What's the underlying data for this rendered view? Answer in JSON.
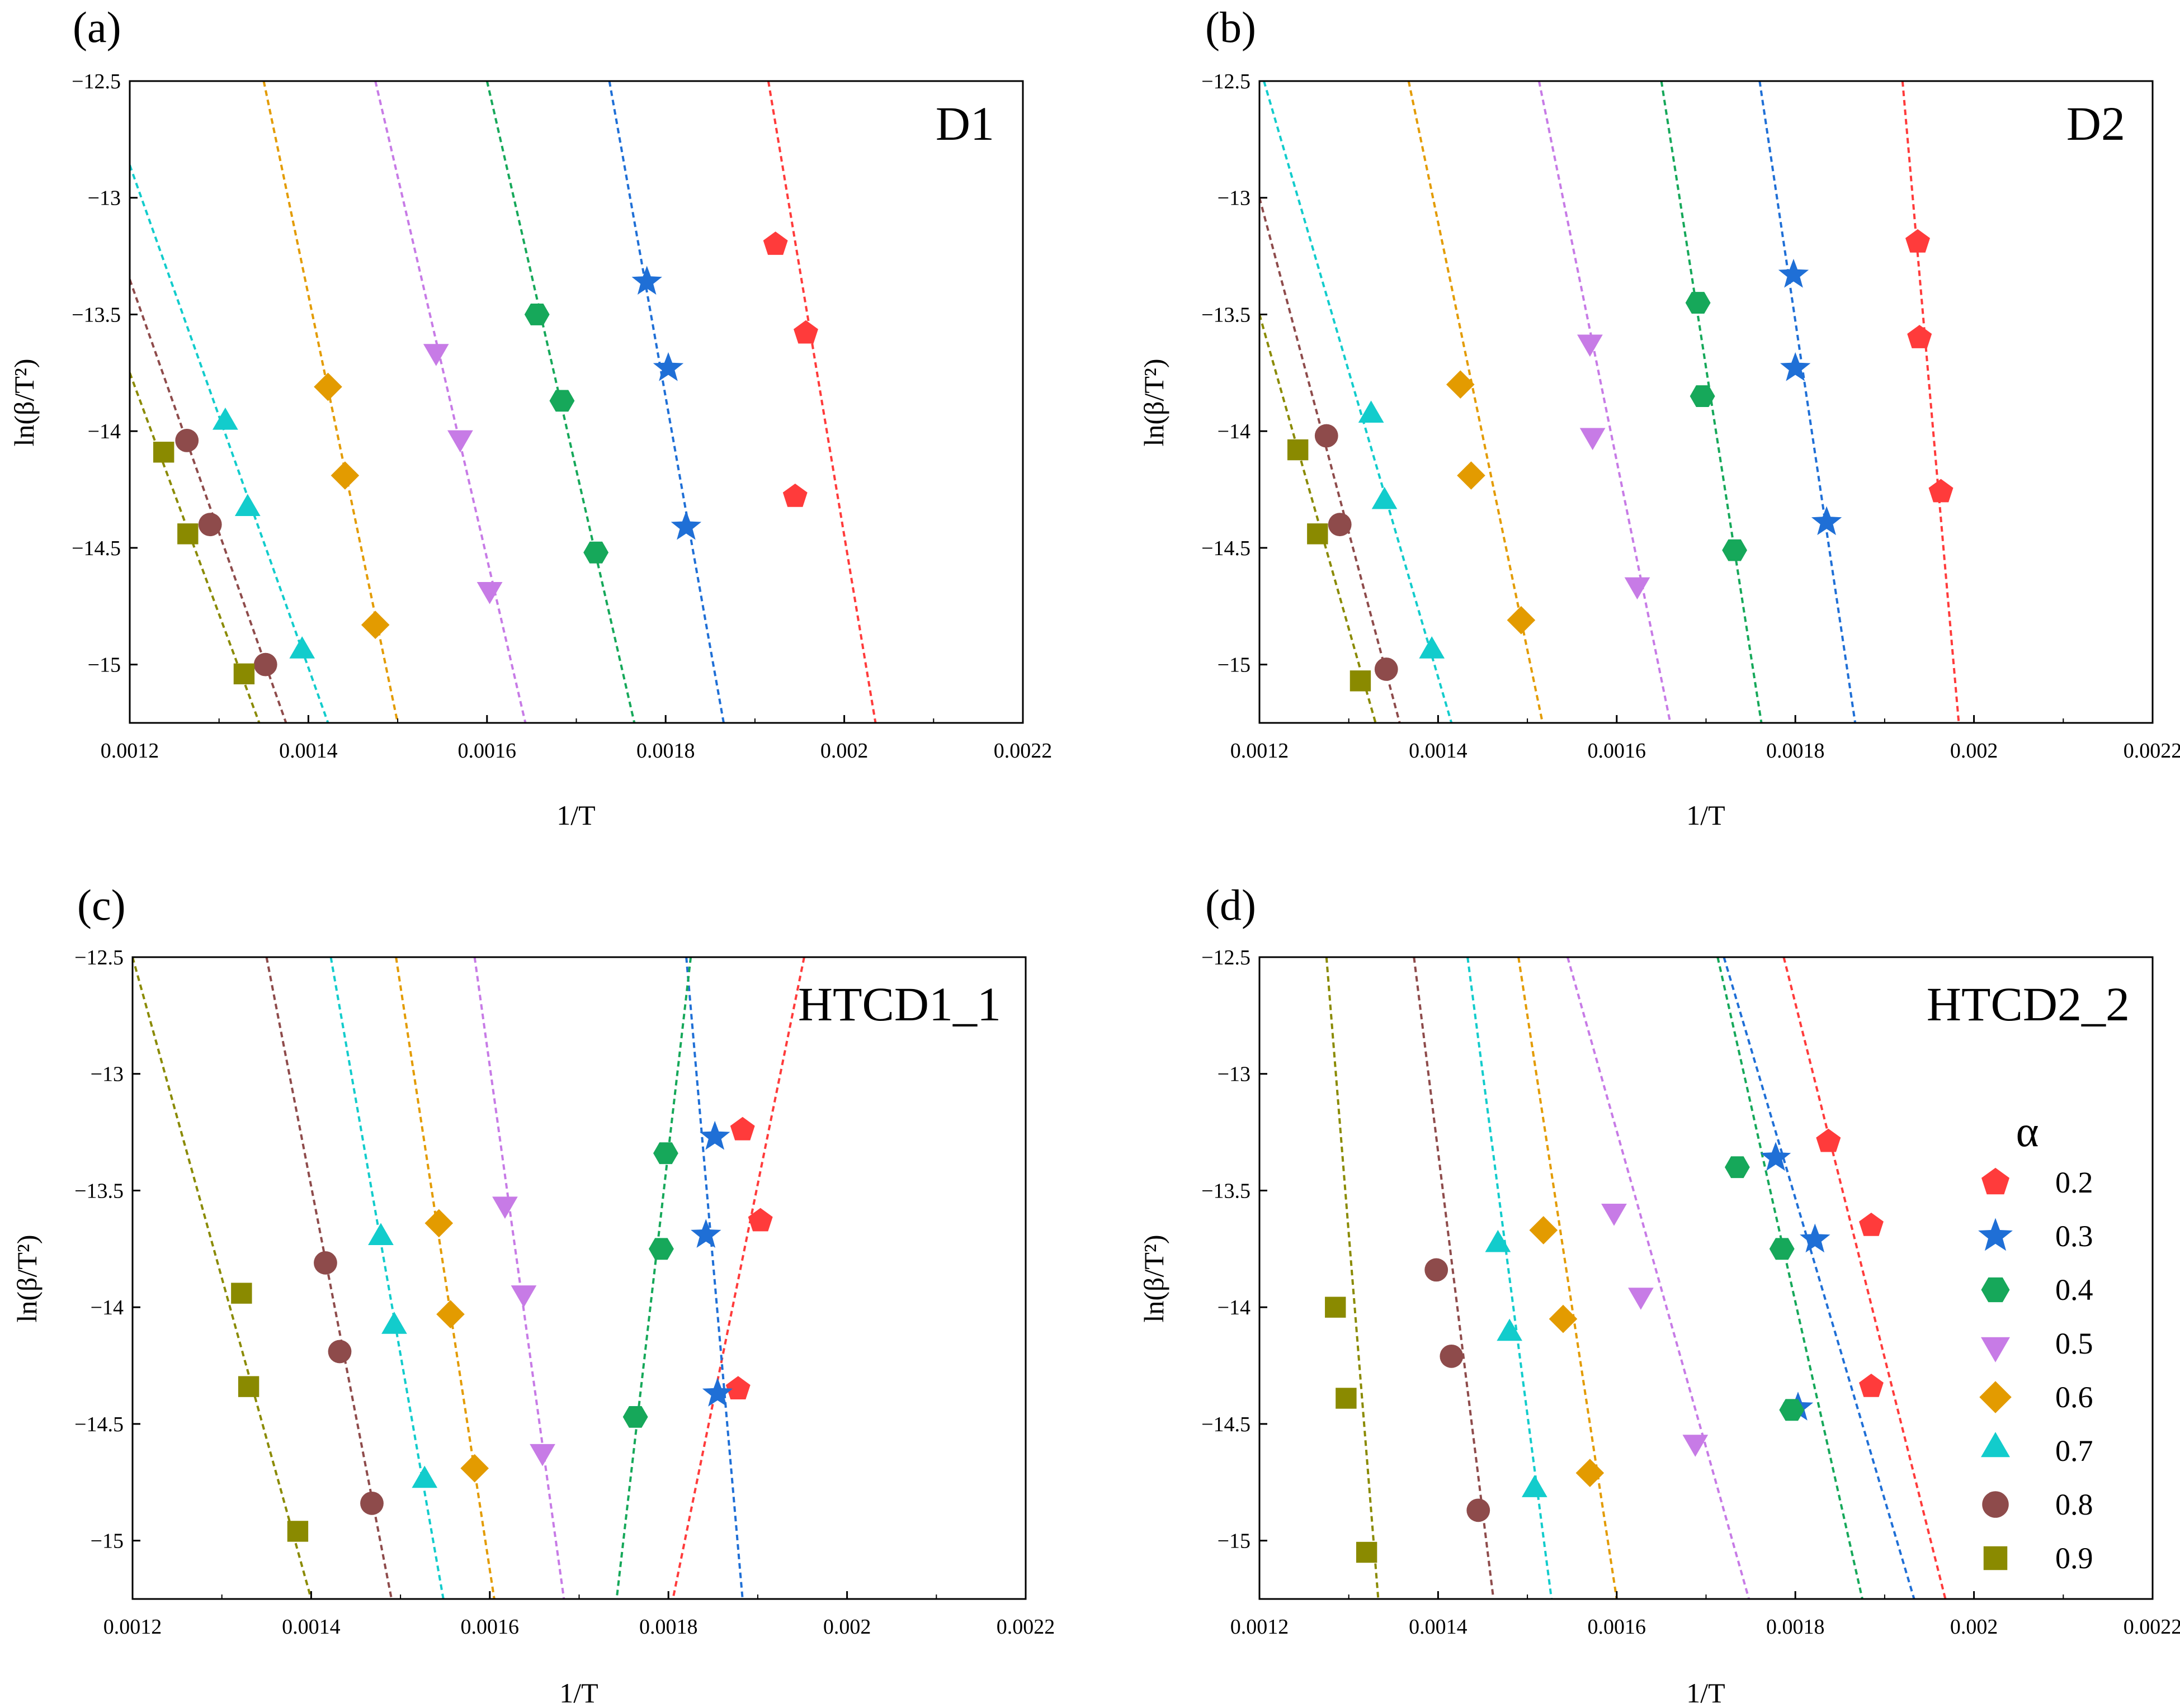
{
  "chart_data": [
    {
      "panel_label": "(a)",
      "type": "scatter",
      "inset_label": "D1",
      "xlabel": "1/T",
      "ylabel": "ln(β/T²)",
      "xlim": [
        0.0012,
        0.0022
      ],
      "ylim": [
        -15.25,
        -12.5
      ],
      "xticks": [
        "0.0012",
        "0.0014",
        "0.0016",
        "0.0018",
        "0.002",
        "0.0022"
      ],
      "yticks": [
        "-12.5",
        "-13",
        "-13.5",
        "-14",
        "-14.5",
        "-15"
      ],
      "series": [
        {
          "name": "0.2",
          "points": [
            [
              0.001923,
              -13.2
            ],
            [
              0.001957,
              -13.58
            ],
            [
              0.001945,
              -14.28
            ]
          ],
          "line": [
            [
              0.001915,
              -12.5
            ],
            [
              0.002035,
              -15.25
            ]
          ]
        },
        {
          "name": "0.3",
          "points": [
            [
              0.001779,
              -13.36
            ],
            [
              0.001803,
              -13.73
            ],
            [
              0.001823,
              -14.41
            ]
          ],
          "line": [
            [
              0.001737,
              -12.5
            ],
            [
              0.001865,
              -15.25
            ]
          ]
        },
        {
          "name": "0.4",
          "points": [
            [
              0.001656,
              -13.5
            ],
            [
              0.001684,
              -13.87
            ],
            [
              0.001722,
              -14.52
            ]
          ],
          "line": [
            [
              0.0016,
              -12.5
            ],
            [
              0.001765,
              -15.25
            ]
          ]
        },
        {
          "name": "0.5",
          "points": [
            [
              0.001543,
              -13.65
            ],
            [
              0.00157,
              -14.02
            ],
            [
              0.001603,
              -14.67
            ]
          ],
          "line": [
            [
              0.001475,
              -12.5
            ],
            [
              0.001643,
              -15.25
            ]
          ]
        },
        {
          "name": "0.6",
          "points": [
            [
              0.001422,
              -13.81
            ],
            [
              0.001441,
              -14.19
            ],
            [
              0.001475,
              -14.83
            ]
          ],
          "line": [
            [
              0.00135,
              -12.5
            ],
            [
              0.0015,
              -15.25
            ]
          ]
        },
        {
          "name": "0.7",
          "points": [
            [
              0.001307,
              -13.97
            ],
            [
              0.001332,
              -14.34
            ],
            [
              0.001393,
              -14.95
            ]
          ],
          "line": [
            [
              0.0012,
              -12.86
            ],
            [
              0.001422,
              -15.25
            ]
          ]
        },
        {
          "name": "0.8",
          "points": [
            [
              0.001264,
              -14.04
            ],
            [
              0.00129,
              -14.4
            ],
            [
              0.001352,
              -15.0
            ]
          ],
          "line": [
            [
              0.0012,
              -13.35
            ],
            [
              0.001375,
              -15.25
            ]
          ]
        },
        {
          "name": "0.9",
          "points": [
            [
              0.001238,
              -14.09
            ],
            [
              0.001265,
              -14.44
            ],
            [
              0.001328,
              -15.04
            ]
          ],
          "line": [
            [
              0.0012,
              -13.75
            ],
            [
              0.001345,
              -15.25
            ]
          ]
        }
      ]
    },
    {
      "panel_label": "(b)",
      "type": "scatter",
      "inset_label": "D2",
      "xlabel": "1/T",
      "ylabel": "ln(β/T²)",
      "xlim": [
        0.0012,
        0.0022
      ],
      "ylim": [
        -15.25,
        -12.5
      ],
      "xticks": [
        "0.0012",
        "0.0014",
        "0.0016",
        "0.0018",
        "0.002",
        "0.0022"
      ],
      "yticks": [
        "-12.5",
        "-13",
        "-13.5",
        "-14",
        "-14.5",
        "-15"
      ],
      "series": [
        {
          "name": "0.2",
          "points": [
            [
              0.001937,
              -13.19
            ],
            [
              0.001939,
              -13.6
            ],
            [
              0.001963,
              -14.26
            ]
          ],
          "line": [
            [
              0.00192,
              -12.5
            ],
            [
              0.001983,
              -15.25
            ]
          ]
        },
        {
          "name": "0.3",
          "points": [
            [
              0.001798,
              -13.33
            ],
            [
              0.0018,
              -13.73
            ],
            [
              0.001835,
              -14.39
            ]
          ],
          "line": [
            [
              0.00176,
              -12.5
            ],
            [
              0.001867,
              -15.25
            ]
          ]
        },
        {
          "name": "0.4",
          "points": [
            [
              0.001691,
              -13.45
            ],
            [
              0.001696,
              -13.85
            ],
            [
              0.001732,
              -14.51
            ]
          ],
          "line": [
            [
              0.00165,
              -12.5
            ],
            [
              0.001762,
              -15.25
            ]
          ]
        },
        {
          "name": "0.5",
          "points": [
            [
              0.00157,
              -13.61
            ],
            [
              0.001573,
              -14.01
            ],
            [
              0.001623,
              -14.65
            ]
          ],
          "line": [
            [
              0.001513,
              -12.5
            ],
            [
              0.00166,
              -15.25
            ]
          ]
        },
        {
          "name": "0.6",
          "points": [
            [
              0.001425,
              -13.8
            ],
            [
              0.001437,
              -14.19
            ],
            [
              0.001493,
              -14.81
            ]
          ],
          "line": [
            [
              0.001367,
              -12.5
            ],
            [
              0.001517,
              -15.25
            ]
          ]
        },
        {
          "name": "0.7",
          "points": [
            [
              0.001325,
              -13.94
            ],
            [
              0.00134,
              -14.31
            ],
            [
              0.001393,
              -14.95
            ]
          ],
          "line": [
            [
              0.001205,
              -12.5
            ],
            [
              0.001415,
              -15.25
            ]
          ]
        },
        {
          "name": "0.8",
          "points": [
            [
              0.001275,
              -14.02
            ],
            [
              0.00129,
              -14.4
            ],
            [
              0.001342,
              -15.02
            ]
          ],
          "line": [
            [
              0.0012,
              -13.0
            ],
            [
              0.001357,
              -15.25
            ]
          ]
        },
        {
          "name": "0.9",
          "points": [
            [
              0.001243,
              -14.08
            ],
            [
              0.001265,
              -14.44
            ],
            [
              0.001313,
              -15.07
            ]
          ],
          "line": [
            [
              0.0012,
              -13.5
            ],
            [
              0.00133,
              -15.25
            ]
          ]
        }
      ]
    },
    {
      "panel_label": "(c)",
      "type": "scatter",
      "inset_label": "HTCD1_1",
      "xlabel": "1/T",
      "ylabel": "ln(β/T²)",
      "xlim": [
        0.0012,
        0.0022
      ],
      "ylim": [
        -15.25,
        -12.5
      ],
      "xticks": [
        "0.0012",
        "0.0014",
        "0.0016",
        "0.0018",
        "0.002",
        "0.0022"
      ],
      "yticks": [
        "-12.5",
        "-13",
        "-13.5",
        "-14",
        "-14.5",
        "-15"
      ],
      "series": [
        {
          "name": "0.2",
          "points": [
            [
              0.001883,
              -13.24
            ],
            [
              0.001903,
              -13.63
            ],
            [
              0.001878,
              -14.35
            ]
          ],
          "line": [
            [
              0.001952,
              -12.5
            ],
            [
              0.001805,
              -15.25
            ]
          ]
        },
        {
          "name": "0.3",
          "points": [
            [
              0.001852,
              -13.27
            ],
            [
              0.001842,
              -13.69
            ],
            [
              0.001855,
              -14.37
            ]
          ],
          "line": [
            [
              0.00182,
              -12.5
            ],
            [
              0.001883,
              -15.25
            ]
          ]
        },
        {
          "name": "0.4",
          "points": [
            [
              0.001797,
              -13.34
            ],
            [
              0.001792,
              -13.75
            ],
            [
              0.001763,
              -14.47
            ]
          ],
          "line": [
            [
              0.001825,
              -12.5
            ],
            [
              0.001742,
              -15.25
            ]
          ]
        },
        {
          "name": "0.5",
          "points": [
            [
              0.001617,
              -13.55
            ],
            [
              0.001638,
              -13.93
            ],
            [
              0.001659,
              -14.61
            ]
          ],
          "line": [
            [
              0.001583,
              -12.5
            ],
            [
              0.001683,
              -15.25
            ]
          ]
        },
        {
          "name": "0.6",
          "points": [
            [
              0.001543,
              -13.64
            ],
            [
              0.001556,
              -14.03
            ],
            [
              0.001583,
              -14.69
            ]
          ],
          "line": [
            [
              0.001495,
              -12.5
            ],
            [
              0.001605,
              -15.25
            ]
          ]
        },
        {
          "name": "0.7",
          "points": [
            [
              0.001478,
              -13.71
            ],
            [
              0.001493,
              -14.09
            ],
            [
              0.001527,
              -14.75
            ]
          ],
          "line": [
            [
              0.001422,
              -12.5
            ],
            [
              0.001548,
              -15.25
            ]
          ]
        },
        {
          "name": "0.8",
          "points": [
            [
              0.001416,
              -13.81
            ],
            [
              0.001432,
              -14.19
            ],
            [
              0.001468,
              -14.84
            ]
          ],
          "line": [
            [
              0.00135,
              -12.5
            ],
            [
              0.00149,
              -15.25
            ]
          ]
        },
        {
          "name": "0.9",
          "points": [
            [
              0.001322,
              -13.94
            ],
            [
              0.00133,
              -14.34
            ],
            [
              0.001385,
              -14.96
            ]
          ],
          "line": [
            [
              0.0012,
              -12.5
            ],
            [
              0.0014,
              -15.25
            ]
          ]
        }
      ]
    },
    {
      "panel_label": "(d)",
      "type": "scatter",
      "inset_label": "HTCD2_2",
      "xlabel": "1/T",
      "ylabel": "ln(β/T²)",
      "xlim": [
        0.0012,
        0.0022
      ],
      "ylim": [
        -15.25,
        -12.5
      ],
      "xticks": [
        "0.0012",
        "0.0014",
        "0.0016",
        "0.0018",
        "0.002",
        "0.0022"
      ],
      "yticks": [
        "-12.5",
        "-13",
        "-13.5",
        "-14",
        "-14.5",
        "-15"
      ],
      "series": [
        {
          "name": "0.2",
          "points": [
            [
              0.001837,
              -13.29
            ],
            [
              0.001885,
              -13.65
            ],
            [
              0.001885,
              -14.34
            ]
          ],
          "line": [
            [
              0.001787,
              -12.5
            ],
            [
              0.001968,
              -15.25
            ]
          ]
        },
        {
          "name": "0.3",
          "points": [
            [
              0.001778,
              -13.36
            ],
            [
              0.001822,
              -13.71
            ],
            [
              0.001803,
              -14.43
            ]
          ],
          "line": [
            [
              0.00172,
              -12.5
            ],
            [
              0.001933,
              -15.25
            ]
          ]
        },
        {
          "name": "0.4",
          "points": [
            [
              0.001735,
              -13.4
            ],
            [
              0.001785,
              -13.75
            ],
            [
              0.001796,
              -14.44
            ]
          ],
          "line": [
            [
              0.001713,
              -12.5
            ],
            [
              0.001875,
              -15.25
            ]
          ]
        },
        {
          "name": "0.5",
          "points": [
            [
              0.001597,
              -13.58
            ],
            [
              0.001627,
              -13.94
            ],
            [
              0.001688,
              -14.57
            ]
          ],
          "line": [
            [
              0.001545,
              -12.5
            ],
            [
              0.001748,
              -15.25
            ]
          ]
        },
        {
          "name": "0.6",
          "points": [
            [
              0.001518,
              -13.67
            ],
            [
              0.00154,
              -14.05
            ],
            [
              0.00157,
              -14.71
            ]
          ],
          "line": [
            [
              0.00149,
              -12.5
            ],
            [
              0.0016,
              -15.25
            ]
          ]
        },
        {
          "name": "0.7",
          "points": [
            [
              0.001467,
              -13.74
            ],
            [
              0.00148,
              -14.12
            ],
            [
              0.001508,
              -14.79
            ]
          ],
          "line": [
            [
              0.001433,
              -12.5
            ],
            [
              0.001527,
              -15.25
            ]
          ]
        },
        {
          "name": "0.8",
          "points": [
            [
              0.001398,
              -13.84
            ],
            [
              0.001415,
              -14.21
            ],
            [
              0.001445,
              -14.87
            ]
          ],
          "line": [
            [
              0.001373,
              -12.5
            ],
            [
              0.001462,
              -15.25
            ]
          ]
        },
        {
          "name": "0.9",
          "points": [
            [
              0.001285,
              -14.0
            ],
            [
              0.001297,
              -14.39
            ],
            [
              0.00132,
              -15.05
            ]
          ],
          "line": [
            [
              0.001275,
              -12.5
            ],
            [
              0.001333,
              -15.25
            ]
          ]
        }
      ]
    }
  ],
  "legend": {
    "title": "α",
    "items": [
      {
        "label": "0.2",
        "color": "#ff3b3b",
        "marker": "pentagon"
      },
      {
        "label": "0.3",
        "color": "#1f6fd6",
        "marker": "star"
      },
      {
        "label": "0.4",
        "color": "#16a85a",
        "marker": "hexagon"
      },
      {
        "label": "0.5",
        "color": "#c77be6",
        "marker": "triangle-down"
      },
      {
        "label": "0.6",
        "color": "#e39b00",
        "marker": "diamond"
      },
      {
        "label": "0.7",
        "color": "#12cccc",
        "marker": "triangle-up"
      },
      {
        "label": "0.8",
        "color": "#8e4b4b",
        "marker": "circle"
      },
      {
        "label": "0.9",
        "color": "#8a8a00",
        "marker": "square"
      }
    ]
  }
}
